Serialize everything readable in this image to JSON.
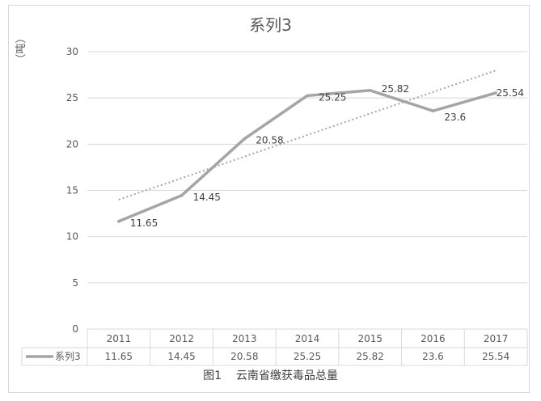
{
  "chart_data": {
    "type": "line",
    "title": "系列3",
    "ylabel": "（吨）",
    "xlabel": "",
    "categories": [
      "2011",
      "2012",
      "2013",
      "2014",
      "2015",
      "2016",
      "2017"
    ],
    "series": [
      {
        "name": "系列3",
        "values": [
          11.65,
          14.45,
          20.58,
          25.25,
          25.82,
          23.6,
          25.54
        ],
        "color": "#a5a5a5"
      }
    ],
    "data_labels": [
      "11.65",
      "14.45",
      "20.58",
      "25.25",
      "25.82",
      "23.6",
      "25.54"
    ],
    "table_values": [
      "11.65",
      "14.45",
      "20.58",
      "25.25",
      "25.82",
      "23.6",
      "25.54"
    ],
    "yticks": [
      "0",
      "5",
      "10",
      "15",
      "20",
      "25",
      "30"
    ],
    "ylim": [
      0,
      30
    ],
    "trendline": {
      "type": "linear",
      "style": "dotted",
      "color": "#a5a5a5"
    },
    "grid": true,
    "legend": "data-table"
  },
  "caption": "图1    云南省缴获毒品总量",
  "colors": {
    "gridline": "#d9d9d9",
    "series": "#a5a5a5",
    "text": "#595959",
    "trend": "#a5a5a5"
  }
}
